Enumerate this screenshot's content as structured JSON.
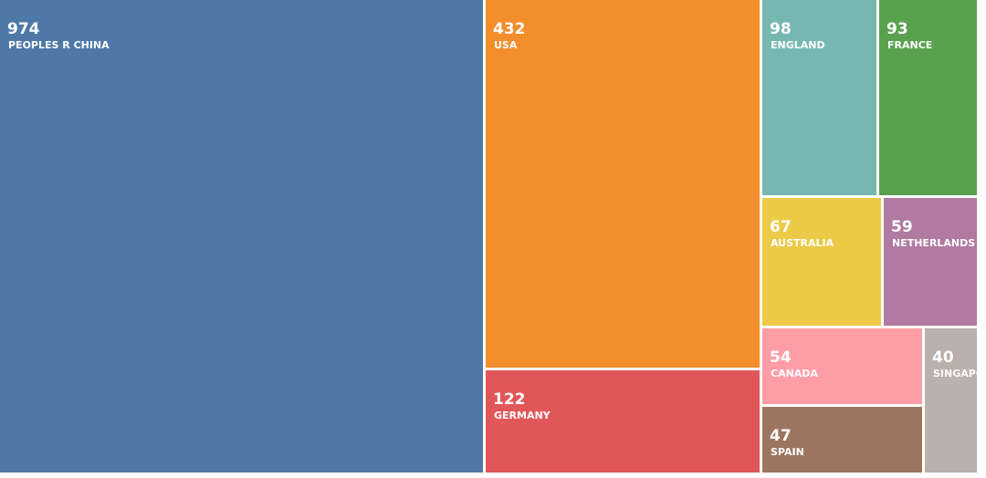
{
  "chart_data": {
    "type": "treemap",
    "categories": [
      "PEOPLES R CHINA",
      "USA",
      "GERMANY",
      "ENGLAND",
      "FRANCE",
      "AUSTRALIA",
      "NETHERLANDS",
      "CANADA",
      "SPAIN",
      "SINGAPORE"
    ],
    "values": [
      974,
      432,
      122,
      98,
      93,
      67,
      59,
      54,
      47,
      40
    ],
    "colors": [
      "#4e79a7",
      "#f28e2b",
      "#e15759",
      "#76b7b2",
      "#59a14f",
      "#edc948",
      "#b07aa1",
      "#ff9da7",
      "#9c755f",
      "#bab0ac"
    ]
  }
}
